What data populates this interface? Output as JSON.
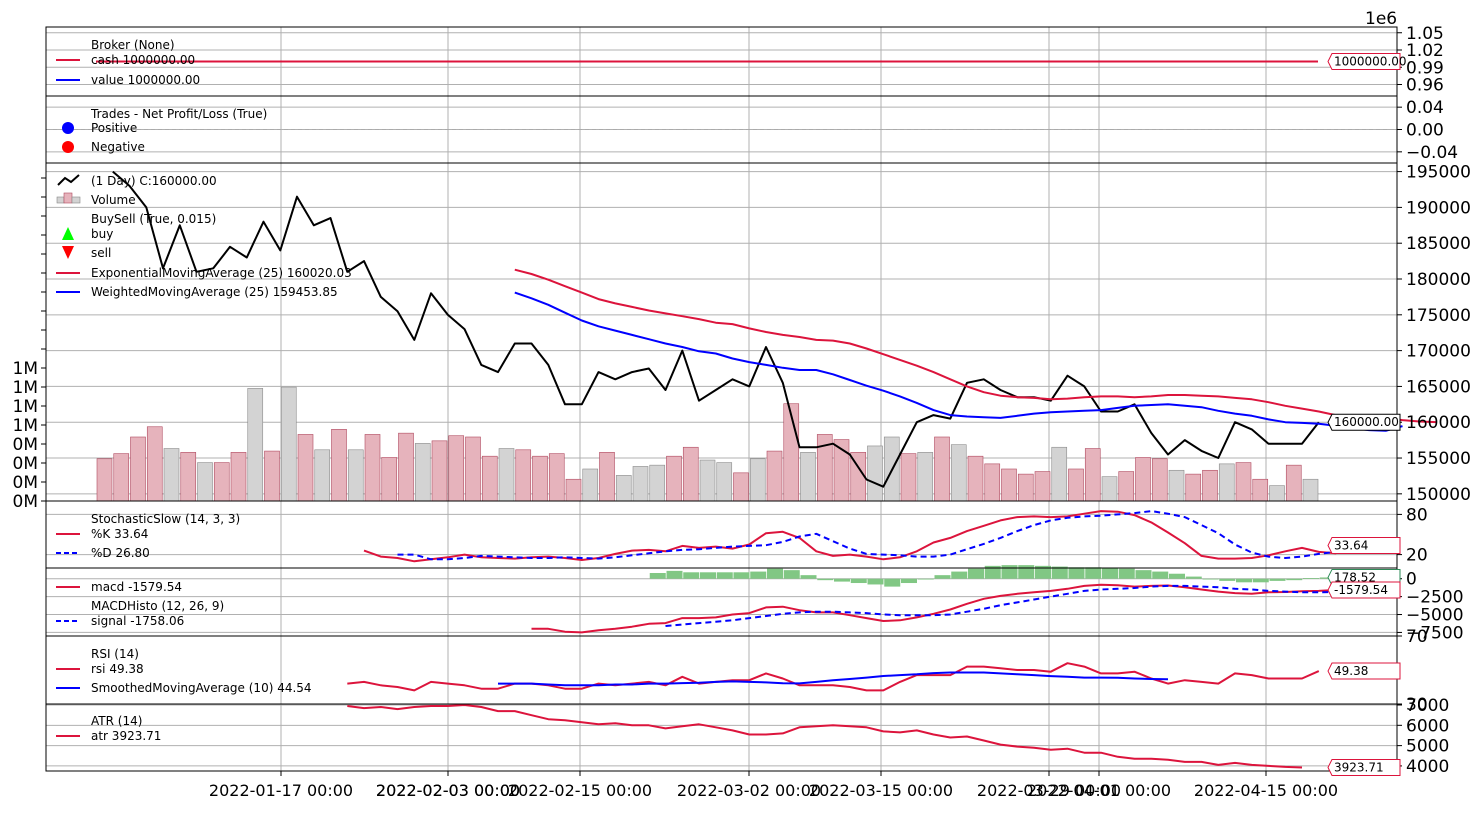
{
  "chart_data": {
    "type": "line",
    "title": "",
    "x_ticks": [
      "2022-01-17 00:00",
      "2022-02-03 00:00",
      "2022-02-03 00:00",
      "2022-02-15 00:00",
      "2022-03-02 00:00",
      "2022-03-15 00:00",
      "2022-03-29 00:00",
      "2022-04-01 00:00",
      "2022-04-15 00:00"
    ],
    "panels": [
      {
        "id": "broker",
        "legend": [
          "Broker (None)",
          "cash 1000000.00",
          "value 1000000.00"
        ],
        "y_ticks": [
          "1.05",
          "1.02",
          "0.99",
          "0.96"
        ],
        "y_exponent": "1e6",
        "ylim": [
          940000,
          1060000
        ],
        "last_value_tag": "1000000.00",
        "series": [
          {
            "name": "cash",
            "color": "#dc143c",
            "values": [
              1000000,
              1000000
            ]
          }
        ]
      },
      {
        "id": "trades",
        "legend": [
          "Trades - Net Profit/Loss (True)",
          "Positive",
          "Negative"
        ],
        "y_ticks": [
          "0.04",
          "0.00",
          "−0.04"
        ],
        "ylim": [
          -0.06,
          0.06
        ]
      },
      {
        "id": "price",
        "legend": [
          " (1 Day) C:160000.00",
          "Volume",
          "BuySell (True, 0.015)",
          "buy",
          "sell",
          "ExponentialMovingAverage (25) 160020.03",
          "WeightedMovingAverage (25) 159453.85"
        ],
        "y_ticks": [
          "195000",
          "190000",
          "185000",
          "180000",
          "175000",
          "170000",
          "165000",
          "160000",
          "155000",
          "150000"
        ],
        "volume_ticks": [
          "1M",
          "1M",
          "1M",
          "1M",
          "0M",
          "0M",
          "0M",
          "0M"
        ],
        "ylim": [
          149000,
          196200
        ],
        "last_value_tag": "160000.00",
        "close": [
          195000,
          193000,
          190000,
          181500,
          187500,
          181000,
          181500,
          184500,
          183000,
          188000,
          184000,
          191500,
          187500,
          188500,
          181000,
          182500,
          177500,
          175500,
          171500,
          178000,
          175000,
          173000,
          168000,
          167000,
          171000,
          171000,
          168000,
          162500,
          162500,
          167000,
          166000,
          167000,
          167500,
          164500,
          170000,
          163000,
          164500,
          166000,
          165000,
          170500,
          165500,
          156500,
          156500,
          157000,
          155500,
          152000,
          151000,
          155500,
          160000,
          161000,
          160500,
          165500,
          166000,
          164500,
          163500,
          163500,
          163000,
          166500,
          165000,
          161500,
          161500,
          162500,
          158500,
          155500,
          157500,
          156000,
          155000,
          160000,
          159000,
          157000,
          157000,
          157000,
          160000
        ],
        "ema": [
          181300,
          180700,
          179900,
          179000,
          178100,
          177200,
          176600,
          176100,
          175600,
          175200,
          174800,
          174400,
          173900,
          173700,
          173100,
          172600,
          172200,
          171900,
          171500,
          171400,
          171000,
          170300,
          169500,
          168700,
          167900,
          167000,
          166000,
          165000,
          164200,
          163700,
          163500,
          163400,
          163200,
          163300,
          163500,
          163600,
          163600,
          163500,
          163600,
          163800,
          163800,
          163700,
          163600,
          163400,
          163200,
          162800,
          162300,
          161900,
          161500,
          161000,
          160900,
          160800,
          160600,
          160300,
          160100,
          160020
        ],
        "wma": [
          178100,
          177300,
          176400,
          175300,
          174200,
          173400,
          172800,
          172200,
          171600,
          171000,
          170500,
          169900,
          169600,
          168900,
          168400,
          168000,
          167600,
          167300,
          167300,
          166700,
          165900,
          165100,
          164400,
          163600,
          162700,
          161700,
          161000,
          160800,
          160700,
          160600,
          160900,
          161200,
          161400,
          161500,
          161600,
          161700,
          162000,
          162300,
          162400,
          162500,
          162300,
          162100,
          161600,
          161200,
          160900,
          160400,
          160000,
          159900,
          159800,
          159500,
          159200,
          158900,
          158800,
          159453.85
        ],
        "volume": [
          0.33,
          0.37,
          0.5,
          0.58,
          0.41,
          0.38,
          0.3,
          0.3,
          0.38,
          0.88,
          0.39,
          0.89,
          0.52,
          0.4,
          0.56,
          0.4,
          0.52,
          0.34,
          0.53,
          0.45,
          0.47,
          0.51,
          0.5,
          0.35,
          0.41,
          0.4,
          0.35,
          0.37,
          0.17,
          0.25,
          0.38,
          0.2,
          0.27,
          0.28,
          0.35,
          0.42,
          0.32,
          0.3,
          0.22,
          0.33,
          0.39,
          0.76,
          0.38,
          0.52,
          0.48,
          0.38,
          0.43,
          0.5,
          0.37,
          0.38,
          0.5,
          0.44,
          0.35,
          0.29,
          0.25,
          0.21,
          0.23,
          0.42,
          0.25,
          0.41,
          0.19,
          0.23,
          0.34,
          0.33,
          0.24,
          0.21,
          0.24,
          0.29,
          0.3,
          0.17,
          0.12,
          0.28,
          0.17
        ],
        "volume_up": [
          false,
          false,
          false,
          false,
          true,
          false,
          true,
          false,
          false,
          true,
          false,
          true,
          false,
          true,
          false,
          true,
          false,
          false,
          false,
          true,
          false,
          false,
          false,
          false,
          true,
          false,
          false,
          false,
          false,
          true,
          false,
          true,
          true,
          true,
          false,
          false,
          true,
          true,
          false,
          true,
          false,
          false,
          true,
          false,
          false,
          false,
          true,
          true,
          false,
          true,
          false,
          true,
          false,
          false,
          false,
          false,
          false,
          true,
          false,
          false,
          true,
          false,
          false,
          false,
          true,
          false,
          false,
          true,
          false,
          false,
          true,
          false,
          true
        ]
      },
      {
        "id": "stochastic",
        "legend": [
          "StochasticSlow (14, 3, 3)",
          "%K 33.64",
          "%D 26.80"
        ],
        "y_ticks": [
          "80",
          "20"
        ],
        "ylim": [
          0,
          100
        ],
        "last_value_tag": "33.64",
        "k": [
          26,
          17,
          15,
          10,
          13,
          16,
          20,
          16,
          15,
          14,
          16,
          17,
          15,
          12,
          15,
          21,
          26,
          27,
          25,
          33,
          30,
          32,
          29,
          35,
          52,
          54,
          45,
          25,
          18,
          20,
          17,
          13,
          16,
          25,
          38,
          45,
          55,
          63,
          71,
          76,
          77,
          76,
          77,
          81,
          85,
          84,
          79,
          68,
          53,
          37,
          18,
          14,
          14,
          15,
          19,
          25,
          30,
          24,
          22,
          33.64
        ],
        "d": [
          20,
          20,
          13,
          13,
          15,
          18,
          17,
          16,
          15,
          15,
          16,
          15,
          14,
          16,
          19,
          22,
          25,
          27,
          28,
          30,
          32,
          33,
          34,
          39,
          47,
          51,
          40,
          29,
          21,
          20,
          19,
          17,
          17,
          20,
          28,
          36,
          45,
          55,
          64,
          71,
          75,
          77,
          78,
          80,
          82,
          85,
          81,
          76,
          64,
          52,
          35,
          23,
          17,
          15,
          17,
          21,
          24,
          27,
          26,
          26.8
        ]
      },
      {
        "id": "macd",
        "legend": [
          "macd -1579.54",
          "MACDHisto (12, 26, 9)",
          "signal -1758.06"
        ],
        "y_ticks": [
          "0",
          "−2500",
          "−5000",
          "−7500"
        ],
        "ylim": [
          -8000,
          1500
        ],
        "last_value_tag": "-1579.54",
        "histo_tag": "178.52",
        "macd": [
          -7000,
          -7000,
          -7400,
          -7500,
          -7200,
          -7000,
          -6700,
          -6300,
          -6200,
          -5500,
          -5500,
          -5400,
          -5000,
          -4800,
          -4000,
          -3900,
          -4400,
          -4700,
          -4700,
          -5100,
          -5500,
          -5900,
          -5800,
          -5400,
          -4900,
          -4300,
          -3500,
          -2800,
          -2400,
          -2100,
          -1900,
          -1700,
          -1400,
          -1000,
          -850,
          -900,
          -1100,
          -1000,
          -950,
          -1200,
          -1500,
          -1800,
          -2000,
          -2100,
          -1900,
          -1850,
          -1750,
          -1700,
          -1579.54
        ],
        "signal": [
          -6600,
          -6400,
          -6200,
          -6000,
          -5800,
          -5500,
          -5200,
          -4900,
          -4700,
          -4600,
          -4600,
          -4700,
          -4800,
          -5000,
          -5100,
          -5100,
          -5100,
          -5000,
          -4600,
          -4200,
          -3700,
          -3300,
          -2900,
          -2500,
          -2100,
          -1700,
          -1500,
          -1400,
          -1300,
          -1100,
          -1000,
          -1000,
          -1100,
          -1200,
          -1400,
          -1500,
          -1700,
          -1800,
          -1900,
          -1900,
          -1850,
          -1800,
          -1758.06
        ],
        "histo": [
          800,
          1100,
          900,
          900,
          900,
          900,
          1000,
          1400,
          1200,
          500,
          -200,
          -400,
          -600,
          -800,
          -1100,
          -600,
          0,
          500,
          1000,
          1400,
          1800,
          1900,
          1900,
          1800,
          1700,
          1600,
          1600,
          1500,
          1400,
          1200,
          1000,
          700,
          300,
          0,
          -300,
          -500,
          -500,
          -300,
          -200,
          100,
          178.52
        ]
      },
      {
        "id": "rsi",
        "legend": [
          "RSI (14)",
          "rsi 49.38",
          "SmoothedMovingAverage (10) 44.54"
        ],
        "y_ticks": [
          "70",
          "30"
        ],
        "ylim": [
          30,
          70
        ],
        "last_value_tag": "49.38",
        "rsi": [
          42,
          43,
          41,
          40,
          38,
          43,
          42,
          41,
          39,
          39,
          42,
          42,
          41,
          39,
          39,
          42,
          41,
          42,
          43,
          41,
          46,
          42,
          43,
          44,
          44,
          48,
          45,
          41,
          41,
          41,
          40,
          38,
          38,
          43,
          47,
          47,
          47,
          52,
          52,
          51,
          50,
          50,
          49,
          54,
          52,
          48,
          48,
          49,
          45,
          42,
          44,
          43,
          42,
          48,
          47,
          45,
          45,
          45,
          49.38
        ],
        "sma": [
          42,
          42,
          42,
          41.5,
          41,
          41,
          41,
          41.5,
          41.5,
          42,
          42,
          42.3,
          42.5,
          43,
          43.3,
          43,
          42.7,
          42.2,
          42.1,
          43,
          44,
          44.7,
          45.5,
          46.5,
          47,
          47.5,
          48.2,
          48.5,
          48.5,
          48.5,
          48,
          47.5,
          47,
          46.4,
          46,
          45.5,
          45.5,
          45.4,
          45,
          44.7,
          44.54
        ]
      },
      {
        "id": "atr",
        "legend": [
          "ATR (14)",
          "atr 3923.71"
        ],
        "y_ticks": [
          "7000",
          "6000",
          "5000",
          "4000"
        ],
        "ylim": [
          3750,
          7050
        ],
        "last_value_tag": "3923.71",
        "atr": [
          6950,
          6850,
          6900,
          6800,
          6900,
          6950,
          6950,
          7000,
          6900,
          6700,
          6700,
          6500,
          6300,
          6250,
          6150,
          6050,
          6100,
          6000,
          6000,
          5850,
          5950,
          6050,
          5900,
          5750,
          5550,
          5550,
          5600,
          5900,
          5950,
          6000,
          5950,
          5900,
          5700,
          5650,
          5750,
          5550,
          5400,
          5450,
          5250,
          5050,
          4950,
          4900,
          4800,
          4850,
          4650,
          4650,
          4450,
          4350,
          4350,
          4300,
          4200,
          4200,
          4050,
          4150,
          4050,
          4000,
          3950,
          3923.71
        ]
      }
    ]
  }
}
